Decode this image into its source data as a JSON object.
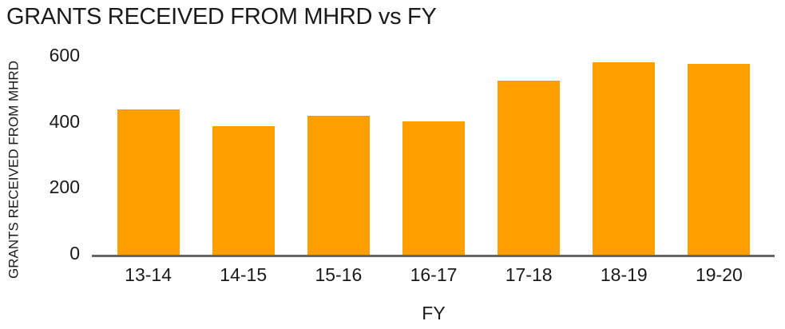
{
  "chart": {
    "bar_color": "#FFA000",
    "axis_line_color": "#666666",
    "text_color": "#1a1a1a",
    "background_color": "#ffffff"
  },
  "chart_data": {
    "type": "bar",
    "title": "GRANTS RECEIVED FROM MHRD vs FY",
    "xlabel": "FY",
    "ylabel": "GRANTS RECEIVED FROM MHRD",
    "categories": [
      "13-14",
      "14-15",
      "15-16",
      "16-17",
      "17-18",
      "18-19",
      "19-20"
    ],
    "values": [
      440,
      390,
      420,
      405,
      525,
      580,
      575
    ],
    "yticks": [
      0,
      200,
      400,
      600
    ],
    "ylim": [
      0,
      600
    ],
    "bar_color": "#FFA000",
    "grid": false,
    "legend": false,
    "legend_position": "none",
    "orientation": "vertical"
  }
}
